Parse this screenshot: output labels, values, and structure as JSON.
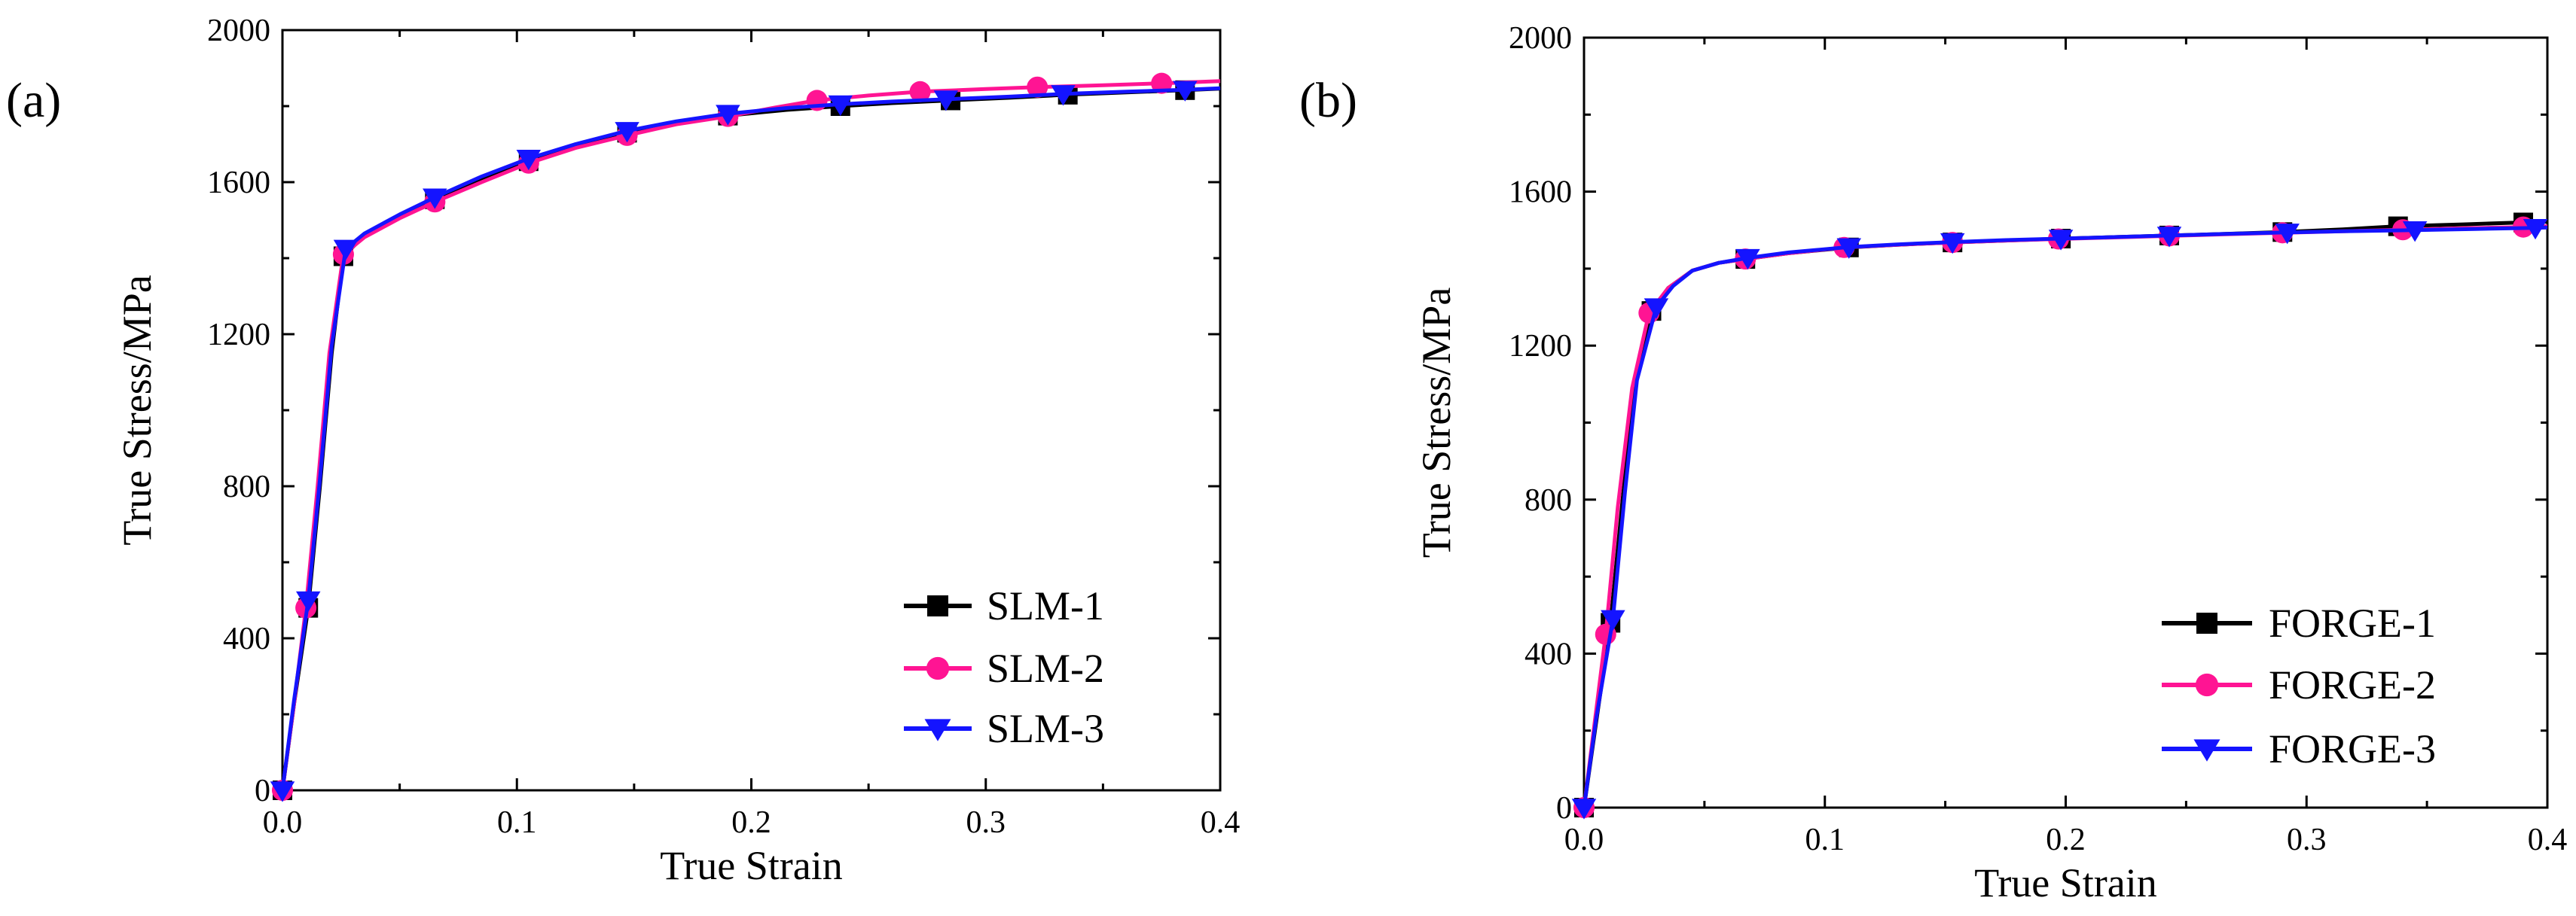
{
  "chart_data": [
    {
      "type": "line",
      "panel_label": "(a)",
      "xlabel": "True Strain",
      "ylabel": "True Stress/MPa",
      "xlim": [
        0.0,
        0.4
      ],
      "ylim": [
        0,
        2000
      ],
      "xticks": [
        0.0,
        0.1,
        0.2,
        0.3,
        0.4
      ],
      "xtick_labels": [
        "0.0",
        "0.1",
        "0.2",
        "0.3",
        "0.4"
      ],
      "yticks": [
        0,
        400,
        800,
        1200,
        1600,
        2000
      ],
      "ytick_labels": [
        "0",
        "400",
        "800",
        "1200",
        "1600",
        "2000"
      ],
      "legend_position": "bottom-right",
      "series": [
        {
          "name": "SLM-1",
          "color": "#000000",
          "marker": "square",
          "x": [
            0.0,
            0.005,
            0.011,
            0.016,
            0.021,
            0.026,
            0.035,
            0.05,
            0.065,
            0.085,
            0.105,
            0.125,
            0.147,
            0.168,
            0.19,
            0.215,
            0.238,
            0.26,
            0.285,
            0.31,
            0.335,
            0.36,
            0.385,
            0.4
          ],
          "y": [
            0,
            230,
            480,
            800,
            1150,
            1405,
            1460,
            1510,
            1555,
            1610,
            1655,
            1695,
            1730,
            1757,
            1775,
            1790,
            1800,
            1808,
            1815,
            1822,
            1830,
            1836,
            1842,
            1846
          ],
          "marker_x": [
            0.0,
            0.011,
            0.026,
            0.065,
            0.105,
            0.147,
            0.19,
            0.238,
            0.285,
            0.335,
            0.385
          ]
        },
        {
          "name": "SLM-2",
          "color": "#ff1493",
          "marker": "circle",
          "x": [
            0.0,
            0.005,
            0.01,
            0.015,
            0.02,
            0.026,
            0.035,
            0.05,
            0.065,
            0.085,
            0.105,
            0.125,
            0.147,
            0.168,
            0.19,
            0.21,
            0.228,
            0.25,
            0.272,
            0.3,
            0.322,
            0.35,
            0.375,
            0.4
          ],
          "y": [
            0,
            230,
            480,
            800,
            1150,
            1410,
            1455,
            1505,
            1548,
            1600,
            1650,
            1690,
            1723,
            1752,
            1773,
            1796,
            1815,
            1828,
            1838,
            1845,
            1850,
            1855,
            1860,
            1866
          ],
          "marker_x": [
            0.0,
            0.01,
            0.026,
            0.065,
            0.105,
            0.147,
            0.19,
            0.228,
            0.272,
            0.322,
            0.375
          ]
        },
        {
          "name": "SLM-3",
          "color": "#1414ff",
          "marker": "triangle-down",
          "x": [
            0.0,
            0.005,
            0.011,
            0.016,
            0.021,
            0.027,
            0.035,
            0.05,
            0.065,
            0.085,
            0.105,
            0.125,
            0.147,
            0.168,
            0.19,
            0.215,
            0.238,
            0.26,
            0.283,
            0.31,
            0.333,
            0.36,
            0.385,
            0.4
          ],
          "y": [
            0,
            240,
            500,
            820,
            1170,
            1425,
            1465,
            1515,
            1560,
            1615,
            1662,
            1700,
            1735,
            1760,
            1780,
            1795,
            1805,
            1812,
            1818,
            1825,
            1832,
            1838,
            1843,
            1847
          ],
          "marker_x": [
            0.0,
            0.011,
            0.027,
            0.065,
            0.105,
            0.147,
            0.19,
            0.238,
            0.283,
            0.333,
            0.385
          ]
        }
      ]
    },
    {
      "type": "line",
      "panel_label": "(b)",
      "xlabel": "True Strain",
      "ylabel": "True Stress/MPa",
      "xlim": [
        0.0,
        0.4
      ],
      "ylim": [
        0,
        2000
      ],
      "xticks": [
        0.0,
        0.1,
        0.2,
        0.3,
        0.4
      ],
      "xtick_labels": [
        "0.0",
        "0.1",
        "0.2",
        "0.3",
        "0.4"
      ],
      "yticks": [
        0,
        400,
        800,
        1200,
        1600,
        2000
      ],
      "ytick_labels": [
        "0",
        "400",
        "800",
        "1200",
        "1600",
        "2000"
      ],
      "legend_position": "bottom-right",
      "series": [
        {
          "name": "FORGE-1",
          "color": "#000000",
          "marker": "square",
          "x": [
            0.0,
            0.005,
            0.011,
            0.016,
            0.021,
            0.028,
            0.035,
            0.045,
            0.056,
            0.067,
            0.085,
            0.11,
            0.13,
            0.153,
            0.175,
            0.198,
            0.22,
            0.243,
            0.265,
            0.29,
            0.315,
            0.338,
            0.365,
            0.39,
            0.4
          ],
          "y": [
            0,
            220,
            480,
            800,
            1100,
            1290,
            1350,
            1395,
            1415,
            1425,
            1440,
            1455,
            1462,
            1468,
            1473,
            1478,
            1482,
            1486,
            1490,
            1495,
            1502,
            1510,
            1515,
            1520,
            1522
          ],
          "marker_x": [
            0.0,
            0.011,
            0.028,
            0.067,
            0.11,
            0.153,
            0.198,
            0.243,
            0.29,
            0.338,
            0.39
          ]
        },
        {
          "name": "FORGE-2",
          "color": "#ff1493",
          "marker": "circle",
          "x": [
            0.0,
            0.004,
            0.009,
            0.014,
            0.02,
            0.027,
            0.035,
            0.045,
            0.056,
            0.067,
            0.085,
            0.108,
            0.13,
            0.153,
            0.175,
            0.197,
            0.22,
            0.243,
            0.265,
            0.29,
            0.315,
            0.34,
            0.365,
            0.39,
            0.4
          ],
          "y": [
            0,
            200,
            450,
            780,
            1090,
            1285,
            1350,
            1395,
            1415,
            1425,
            1440,
            1455,
            1462,
            1468,
            1473,
            1477,
            1481,
            1485,
            1489,
            1493,
            1497,
            1501,
            1505,
            1508,
            1510
          ],
          "marker_x": [
            0.0,
            0.009,
            0.027,
            0.067,
            0.108,
            0.153,
            0.197,
            0.243,
            0.29,
            0.34,
            0.39
          ]
        },
        {
          "name": "FORGE-3",
          "color": "#1414ff",
          "marker": "triangle-down",
          "x": [
            0.0,
            0.005,
            0.012,
            0.017,
            0.022,
            0.03,
            0.037,
            0.045,
            0.056,
            0.068,
            0.085,
            0.11,
            0.13,
            0.153,
            0.175,
            0.198,
            0.22,
            0.243,
            0.265,
            0.292,
            0.315,
            0.345,
            0.37,
            0.395,
            0.4
          ],
          "y": [
            0,
            230,
            490,
            820,
            1110,
            1300,
            1355,
            1395,
            1415,
            1428,
            1442,
            1456,
            1463,
            1469,
            1474,
            1478,
            1482,
            1486,
            1490,
            1494,
            1497,
            1500,
            1503,
            1506,
            1507
          ],
          "marker_x": [
            0.0,
            0.012,
            0.03,
            0.068,
            0.11,
            0.153,
            0.198,
            0.243,
            0.292,
            0.345,
            0.395
          ]
        }
      ]
    }
  ]
}
